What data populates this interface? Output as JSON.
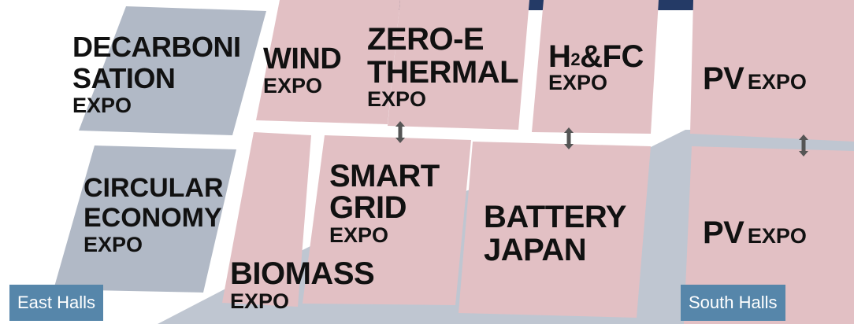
{
  "colors": {
    "expo_fill": "#e2c0c4",
    "circular_fill": "#b1b9c6",
    "walkway_fill": "#bfc6d1",
    "top_bar": "#243a66",
    "hall_tag_bg": "#5686aa",
    "arrow": "#555555"
  },
  "expos": {
    "decarbonisation": {
      "line1": "DECARBONI",
      "line2": "SATION",
      "line3": "EXPO"
    },
    "wind": {
      "line1": "WIND",
      "line2": "EXPO"
    },
    "zero_e": {
      "line1": "ZERO-E",
      "line2": "THERMAL",
      "line3": "EXPO"
    },
    "h2fc": {
      "prefix": "H",
      "subscript": "2",
      "suffix": "&FC",
      "line2": "EXPO"
    },
    "pv_top": {
      "name": "PV",
      "suffix": "EXPO"
    },
    "circular": {
      "line1": "CIRCULAR",
      "line2": "ECONOMY",
      "line3": "EXPO"
    },
    "smart_grid": {
      "line1": "SMART",
      "line2": "GRID",
      "line3": "EXPO"
    },
    "battery": {
      "line1": "BATTERY",
      "line2": "JAPAN"
    },
    "biomass": {
      "line1": "BIOMASS",
      "line2": "EXPO"
    },
    "pv_bottom": {
      "name": "PV",
      "suffix": "EXPO"
    }
  },
  "halls": {
    "east": "East Halls",
    "south": "South Halls"
  },
  "icons": {
    "connector": "double-arrow-vertical-icon"
  }
}
